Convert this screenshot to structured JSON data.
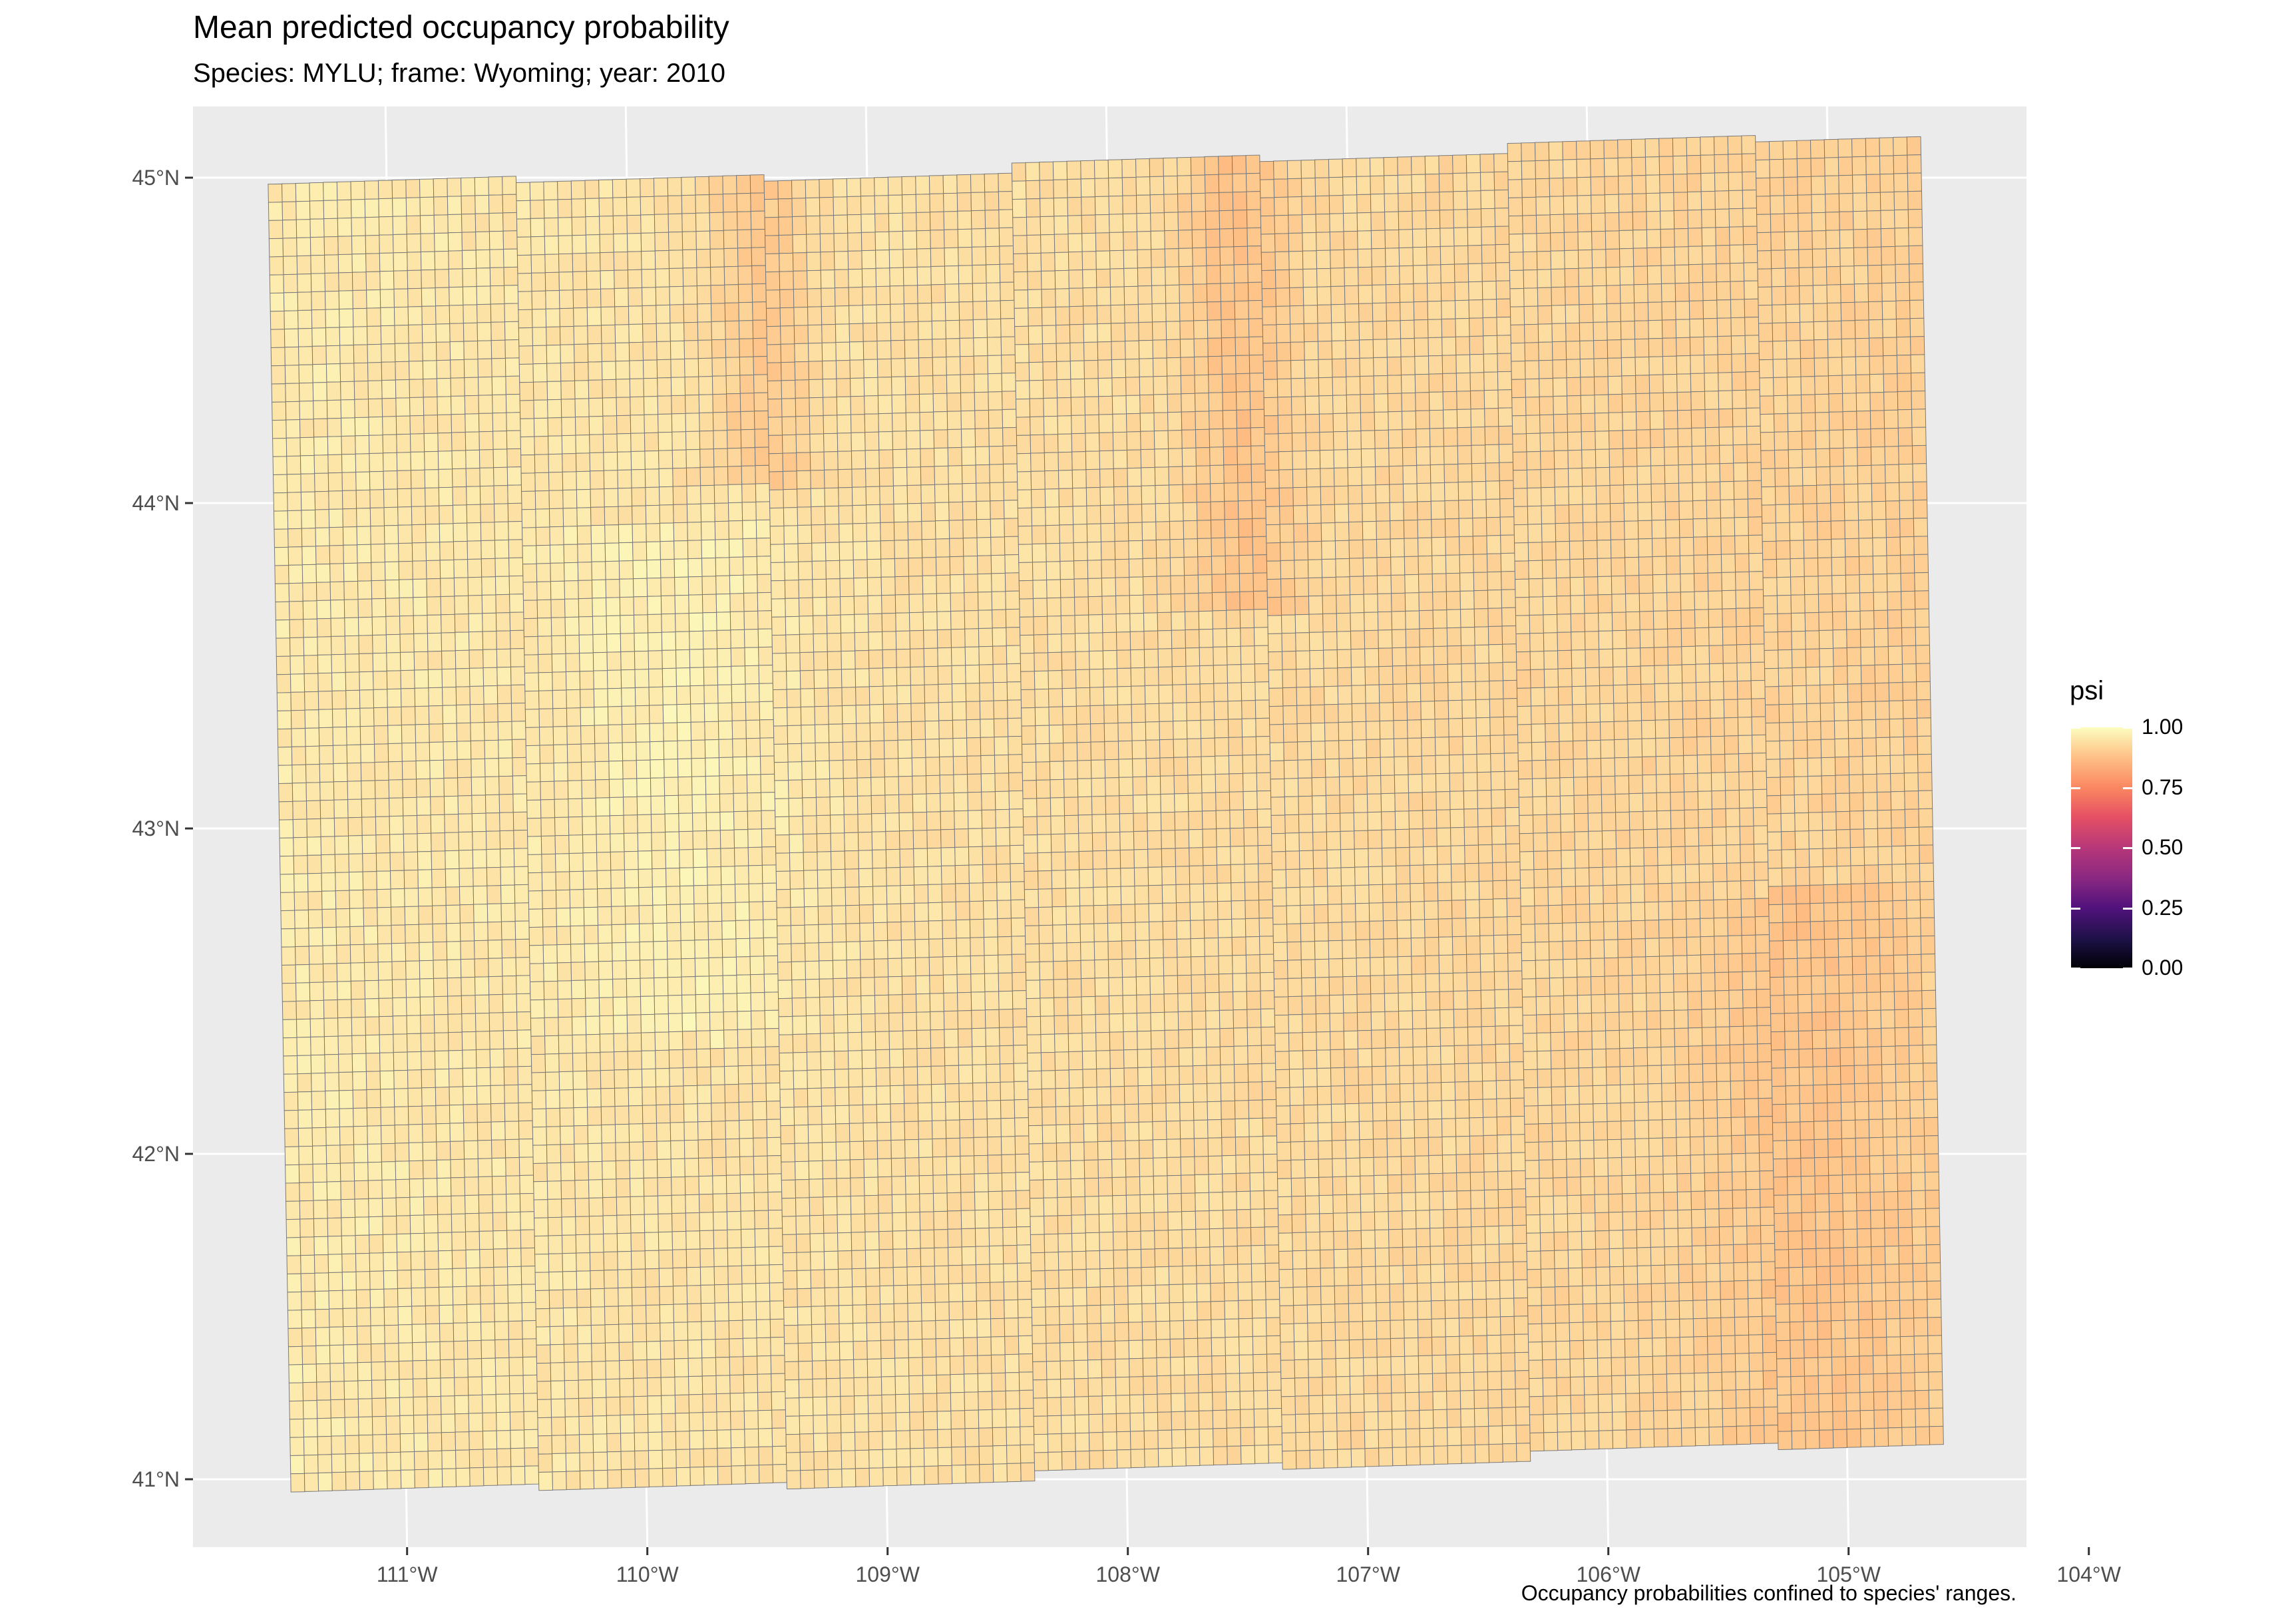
{
  "header": {
    "title": "Mean predicted occupancy probability",
    "subtitle": "Species: MYLU; frame: Wyoming; year: 2010"
  },
  "caption": "Occupancy probabilities confined to species' ranges.",
  "map": {
    "projection": "Lambert-like projected grid over Wyoming",
    "panel_background": "#ebebeb",
    "gridline_color": "#ffffff",
    "cell_border_color": "#7a7a7a",
    "lon_range": [
      -111.4,
      -103.7
    ],
    "lat_range": [
      40.75,
      45.3
    ],
    "x_ticks": [
      {
        "value": -111,
        "label": "111°W"
      },
      {
        "value": -110,
        "label": "110°W"
      },
      {
        "value": -109,
        "label": "109°W"
      },
      {
        "value": -108,
        "label": "108°W"
      },
      {
        "value": -107,
        "label": "107°W"
      },
      {
        "value": -106,
        "label": "106°W"
      },
      {
        "value": -105,
        "label": "105°W"
      },
      {
        "value": -104,
        "label": "104°W"
      }
    ],
    "y_ticks": [
      {
        "value": 45,
        "label": "45°N"
      },
      {
        "value": 44,
        "label": "44°N"
      },
      {
        "value": 43,
        "label": "43°N"
      },
      {
        "value": 42,
        "label": "42°N"
      },
      {
        "value": 41,
        "label": "41°N"
      }
    ],
    "fill_variable": "psi",
    "typical_psi_range": [
      0.82,
      0.99
    ],
    "higher_psi_regions": "western and central-western cells (pale yellow)",
    "lower_psi_regions": "northern mountain strips near 107.5°W–107°W and 109.5°W, and southeastern cells (light orange)"
  },
  "legend": {
    "title": "psi",
    "palette": "magma",
    "labels": [
      "1.00",
      "0.75",
      "0.50",
      "0.25",
      "0.00"
    ],
    "values": [
      1.0,
      0.75,
      0.5,
      0.25,
      0.0
    ],
    "colors": [
      "#fcfdbf",
      "#fb8761",
      "#b73779",
      "#51127c",
      "#000004"
    ]
  }
}
